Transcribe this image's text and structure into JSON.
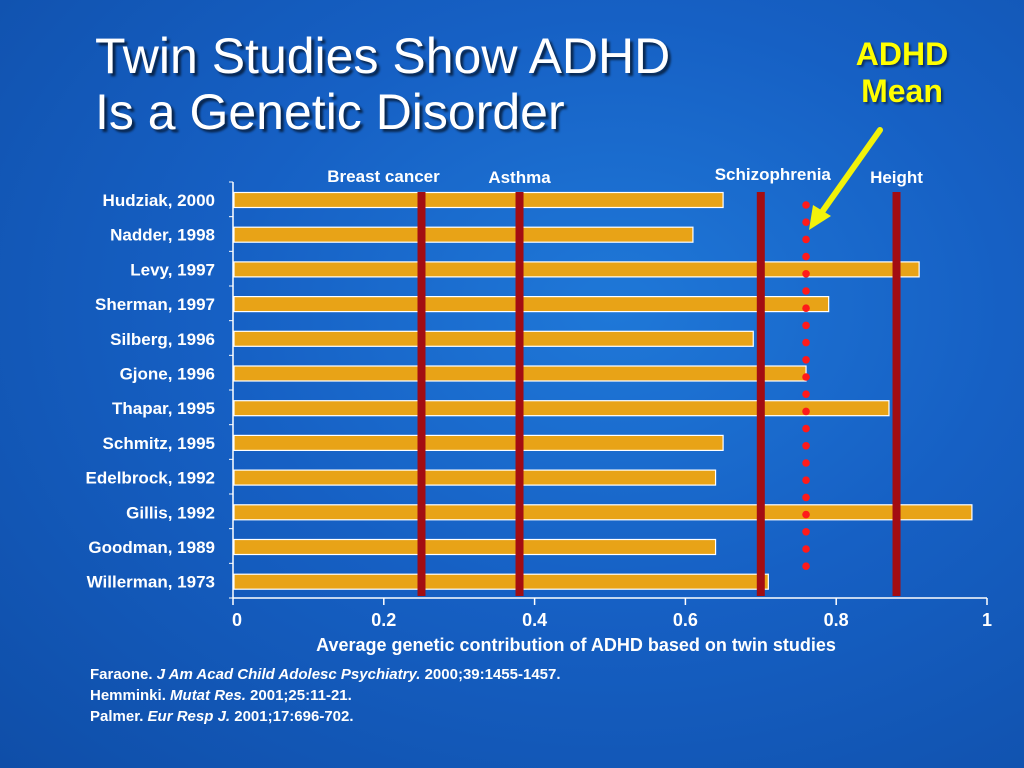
{
  "title": {
    "line1": "Twin Studies Show ADHD",
    "line2": "Is a Genetic Disorder"
  },
  "mean_label": {
    "line1": "ADHD",
    "line2": "Mean"
  },
  "colors": {
    "bar": "#e8a317",
    "bar_edge": "#ffffff",
    "ref_line": "#a30d12",
    "mean_dots": "#ff1a1a",
    "arrow": "#f2f20a",
    "mean_text": "#ffff00"
  },
  "chart_data": {
    "type": "bar",
    "orientation": "horizontal",
    "categories": [
      "Hudziak, 2000",
      "Nadder, 1998",
      "Levy, 1997",
      "Sherman, 1997",
      "Silberg, 1996",
      "Gjone, 1996",
      "Thapar, 1995",
      "Schmitz, 1995",
      "Edelbrock, 1992",
      "Gillis, 1992",
      "Goodman, 1989",
      "Willerman, 1973"
    ],
    "values": [
      0.65,
      0.61,
      0.91,
      0.79,
      0.69,
      0.76,
      0.87,
      0.65,
      0.64,
      0.98,
      0.64,
      0.71
    ],
    "xlabel": "Average genetic contribution of ADHD based on twin studies",
    "xlim": [
      0,
      1
    ],
    "xticks": [
      0,
      0.2,
      0.4,
      0.6,
      0.8,
      1
    ],
    "xtick_labels": [
      "0",
      "0.2",
      "0.4",
      "0.6",
      "0.8",
      "1"
    ],
    "reference_lines": [
      {
        "label": "Breast cancer",
        "value": 0.25
      },
      {
        "label": "Asthma",
        "value": 0.38
      },
      {
        "label": "Schizophrenia",
        "value": 0.7
      },
      {
        "label": "Height",
        "value": 0.88
      }
    ],
    "mean_line": {
      "value": 0.76,
      "style": "dotted"
    }
  },
  "references": [
    {
      "author": "Faraone.",
      "journal": "J Am Acad Child Adolesc Psychiatry.",
      "details": "2000;39:1455-1457."
    },
    {
      "author": "Hemminki.",
      "journal": "Mutat Res.",
      "details": "2001;25:11-21."
    },
    {
      "author": "Palmer.",
      "journal": "Eur Resp J.",
      "details": "2001;17:696-702."
    }
  ]
}
